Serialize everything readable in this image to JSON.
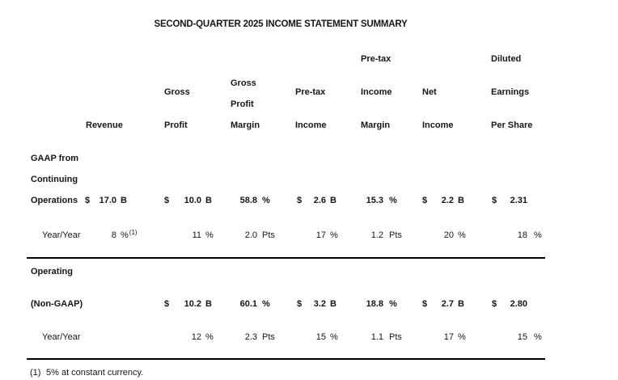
{
  "title": "SECOND-QUARTER 2025 INCOME STATEMENT SUMMARY",
  "colors": {
    "text": "#161616",
    "rule": "#000000",
    "background": "#ffffff"
  },
  "header": {
    "cols": [
      [
        "Revenue"
      ],
      [
        "Gross",
        "Profit"
      ],
      [
        "Gross",
        "Profit",
        "Margin"
      ],
      [
        "Pre-tax",
        "Income"
      ],
      [
        "Pre-tax",
        "Income",
        "Margin"
      ],
      [
        "Net",
        "Income"
      ],
      [
        "Diluted",
        "Earnings",
        "Per Share"
      ]
    ]
  },
  "sections": [
    {
      "label_lines": [
        "GAAP from",
        "Continuing",
        "Operations"
      ],
      "main": {
        "c1": {
          "d": "$",
          "v": "17.0",
          "u": "B"
        },
        "c2": {
          "d": "$",
          "v": "10.0",
          "u": "B"
        },
        "c3": {
          "v": "58.8",
          "u": "%"
        },
        "c4": {
          "d": "$",
          "v": "2.6",
          "u": "B"
        },
        "c5": {
          "v": "15.3",
          "u": "%"
        },
        "c6": {
          "d": "$",
          "v": "2.2",
          "u": "B"
        },
        "c7": {
          "d": "$",
          "v": "2.31"
        }
      },
      "yoy": {
        "label": "Year/Year",
        "c1": {
          "v": "8",
          "u": "%",
          "sup": "(1)"
        },
        "c2": {
          "v": "11",
          "u": "%"
        },
        "c3": {
          "v": "2.0",
          "u": "Pts"
        },
        "c4": {
          "v": "17",
          "u": "%"
        },
        "c5": {
          "v": "1.2",
          "u": "Pts"
        },
        "c6": {
          "v": "20",
          "u": "%"
        },
        "c7": {
          "v": "18",
          "u": "%"
        }
      }
    },
    {
      "label_lines": [
        "Operating",
        "(Non-GAAP)"
      ],
      "main": {
        "c2": {
          "d": "$",
          "v": "10.2",
          "u": "B"
        },
        "c3": {
          "v": "60.1",
          "u": "%"
        },
        "c4": {
          "d": "$",
          "v": "3.2",
          "u": "B"
        },
        "c5": {
          "v": "18.8",
          "u": "%"
        },
        "c6": {
          "d": "$",
          "v": "2.7",
          "u": "B"
        },
        "c7": {
          "d": "$",
          "v": "2.80"
        }
      },
      "yoy": {
        "label": "Year/Year",
        "c2": {
          "v": "12",
          "u": "%"
        },
        "c3": {
          "v": "2.3",
          "u": "Pts"
        },
        "c4": {
          "v": "15",
          "u": "%"
        },
        "c5": {
          "v": "1.1",
          "u": "Pts"
        },
        "c6": {
          "v": "17",
          "u": "%"
        },
        "c7": {
          "v": "15",
          "u": "%"
        }
      }
    }
  ],
  "footnote": {
    "marker": "(1)",
    "text": "5% at constant currency."
  }
}
